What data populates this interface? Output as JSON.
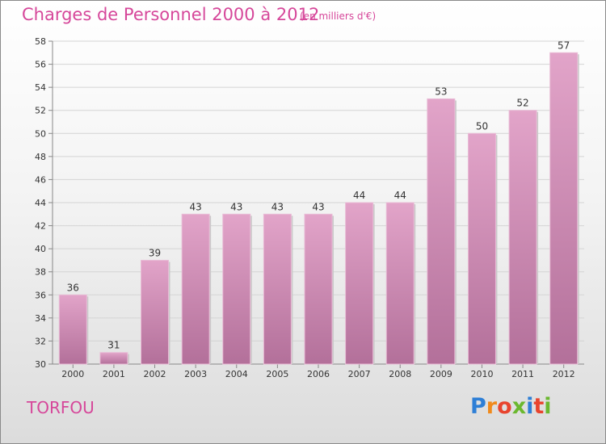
{
  "header": {
    "title": "Charges de Personnel 2000 à 2012",
    "subtitle": "(en milliers d'€)"
  },
  "footer": {
    "commune": "TORFOU",
    "logo_text": "Proxiti"
  },
  "colors": {
    "accent": "#d6479a",
    "bar_top": "#e2a4c9",
    "bar_bottom": "#b3709a"
  },
  "chart_data": {
    "type": "bar",
    "categories": [
      "2000",
      "2001",
      "2002",
      "2003",
      "2004",
      "2005",
      "2006",
      "2007",
      "2008",
      "2009",
      "2010",
      "2011",
      "2012"
    ],
    "values": [
      36,
      31,
      39,
      43,
      43,
      43,
      43,
      44,
      44,
      53,
      50,
      52,
      57
    ],
    "ylim": [
      30,
      58
    ],
    "yticks": [
      30,
      32,
      34,
      36,
      38,
      40,
      42,
      44,
      46,
      48,
      50,
      52,
      54,
      56,
      58
    ],
    "grid": true,
    "legend": "none"
  }
}
